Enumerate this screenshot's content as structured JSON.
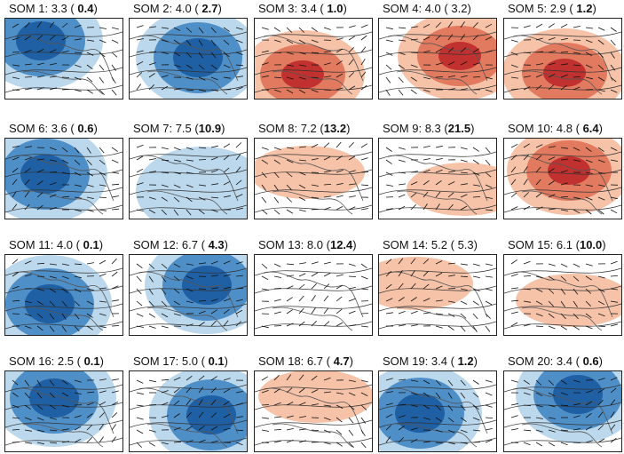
{
  "panels": [
    {
      "id": "SOM 1:",
      "value": "3.3",
      "paren_open": "(",
      "pct": " 0.4",
      "paren_close": ")",
      "pct_bold": true,
      "anomaly": "low"
    },
    {
      "id": "SOM 2:",
      "value": "4.0",
      "paren_open": "(",
      "pct": " 2.7",
      "paren_close": ")",
      "pct_bold": true,
      "anomaly": "low"
    },
    {
      "id": "SOM 3:",
      "value": "3.4",
      "paren_open": "(",
      "pct": " 1.0",
      "paren_close": ")",
      "pct_bold": true,
      "anomaly": "high"
    },
    {
      "id": "SOM 4:",
      "value": "4.0",
      "paren_open": "(",
      "pct": " 3.2",
      "paren_close": ")",
      "pct_bold": false,
      "anomaly": "high"
    },
    {
      "id": "SOM 5:",
      "value": "2.9",
      "paren_open": "(",
      "pct": " 1.2",
      "paren_close": ")",
      "pct_bold": true,
      "anomaly": "high"
    },
    {
      "id": "SOM 6:",
      "value": "3.6",
      "paren_open": "(",
      "pct": " 0.6",
      "paren_close": ")",
      "pct_bold": true,
      "anomaly": "low"
    },
    {
      "id": "SOM 7:",
      "value": "7.5",
      "paren_open": "(",
      "pct": "10.9",
      "paren_close": ")",
      "pct_bold": true,
      "anomaly": "weak-low"
    },
    {
      "id": "SOM 8:",
      "value": "7.2",
      "paren_open": "(",
      "pct": "13.2",
      "paren_close": ")",
      "pct_bold": true,
      "anomaly": "weak-high"
    },
    {
      "id": "SOM 9:",
      "value": "8.3",
      "paren_open": "(",
      "pct": "21.5",
      "paren_close": ")",
      "pct_bold": true,
      "anomaly": "weak-high"
    },
    {
      "id": "SOM 10:",
      "value": "4.8",
      "paren_open": "(",
      "pct": " 6.4",
      "paren_close": ")",
      "pct_bold": true,
      "anomaly": "high"
    },
    {
      "id": "SOM 11:",
      "value": "4.0",
      "paren_open": "(",
      "pct": " 0.1",
      "paren_close": ")",
      "pct_bold": true,
      "anomaly": "low"
    },
    {
      "id": "SOM 12:",
      "value": "6.7",
      "paren_open": "(",
      "pct": " 4.3",
      "paren_close": ")",
      "pct_bold": true,
      "anomaly": "low"
    },
    {
      "id": "SOM 13:",
      "value": "8.0",
      "paren_open": "(",
      "pct": "12.4",
      "paren_close": ")",
      "pct_bold": true,
      "anomaly": "neutral"
    },
    {
      "id": "SOM 14:",
      "value": "5.2",
      "paren_open": "(",
      "pct": " 5.3",
      "paren_close": ")",
      "pct_bold": false,
      "anomaly": "weak-high"
    },
    {
      "id": "SOM 15:",
      "value": "6.1",
      "paren_open": "(",
      "pct": "10.0",
      "paren_close": ")",
      "pct_bold": true,
      "anomaly": "weak-high"
    },
    {
      "id": "SOM 16:",
      "value": "2.5",
      "paren_open": "(",
      "pct": " 0.1",
      "paren_close": ")",
      "pct_bold": true,
      "anomaly": "low"
    },
    {
      "id": "SOM 17:",
      "value": "5.0",
      "paren_open": "(",
      "pct": " 0.1",
      "paren_close": ")",
      "pct_bold": true,
      "anomaly": "low"
    },
    {
      "id": "SOM 18:",
      "value": "6.7",
      "paren_open": "(",
      "pct": " 4.7",
      "paren_close": ")",
      "pct_bold": true,
      "anomaly": "weak-high"
    },
    {
      "id": "SOM 19:",
      "value": "3.4",
      "paren_open": "(",
      "pct": " 1.2",
      "paren_close": ")",
      "pct_bold": true,
      "anomaly": "low"
    },
    {
      "id": "SOM 20:",
      "value": "3.4",
      "paren_open": "(",
      "pct": " 0.6",
      "paren_close": ")",
      "pct_bold": true,
      "anomaly": "low"
    }
  ],
  "colors": {
    "high_strong": "#c0312f",
    "high_mid": "#e27a5f",
    "high_weak": "#f6c3a9",
    "low_strong": "#1f5fa3",
    "low_mid": "#4f8fc8",
    "low_weak": "#bcd8ec",
    "outline": "#222222",
    "coast": "#555555"
  }
}
